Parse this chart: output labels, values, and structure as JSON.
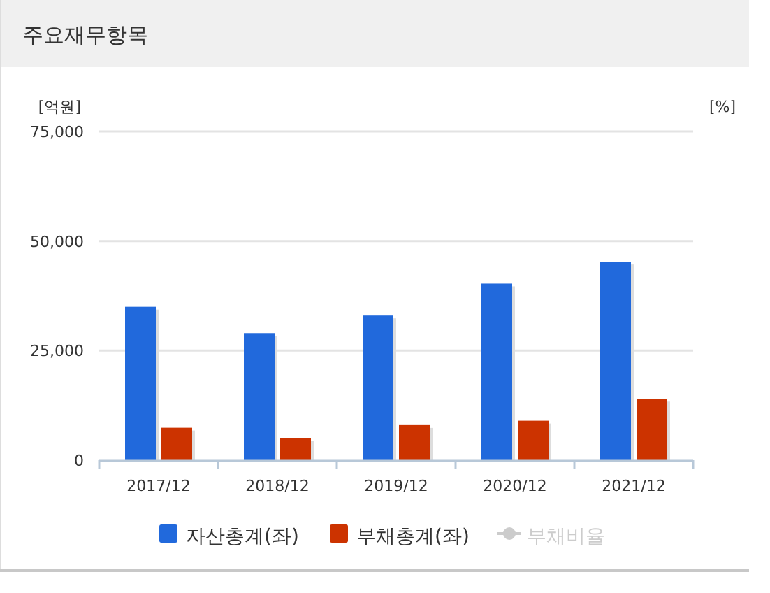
{
  "chart_data": {
    "type": "bar",
    "title": "주요재무항목",
    "ylabel": "[억원]",
    "y2label": "[%]",
    "categories": [
      "2017/12",
      "2018/12",
      "2019/12",
      "2020/12",
      "2021/12"
    ],
    "series": [
      {
        "name": "자산총계(좌)",
        "color": "#2169dc",
        "values": [
          35000,
          29000,
          33000,
          40300,
          45300
        ]
      },
      {
        "name": "부채총계(좌)",
        "color": "#cc3300",
        "values": [
          7400,
          5100,
          8000,
          9000,
          14000
        ]
      },
      {
        "name": "부채비율",
        "type": "line",
        "color": "#cccccc",
        "values": [
          null,
          null,
          null,
          null,
          null
        ]
      }
    ],
    "ylim": [
      0,
      75000
    ],
    "yticks": [
      0,
      {
        "value": 25000,
        "label": "25,000"
      },
      {
        "value": 50000,
        "label": "50,000"
      },
      {
        "value": 75000,
        "label": "75,000"
      }
    ],
    "grid": "y",
    "legend": "bottom",
    "marker": "circle"
  }
}
